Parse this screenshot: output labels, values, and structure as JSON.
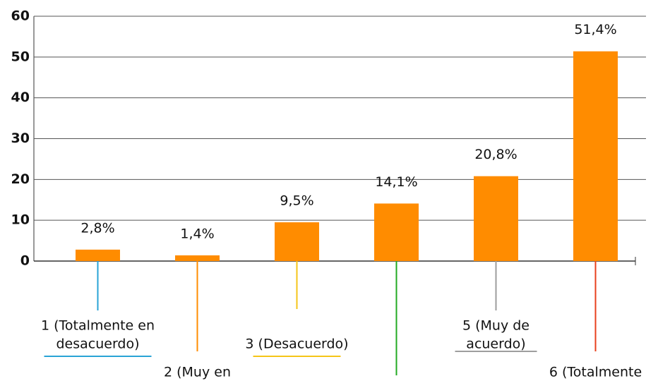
{
  "chart_data": {
    "type": "bar",
    "categories": [
      [
        "1 (Totalmente en",
        "desacuerdo)"
      ],
      [
        "2 (Muy en"
      ],
      [
        "3 (Desacuerdo)"
      ],
      null,
      [
        "5 (Muy de",
        "acuerdo)"
      ],
      [
        "6 (Totalmente"
      ]
    ],
    "values": [
      2.8,
      1.4,
      9.5,
      14.1,
      20.8,
      51.4
    ],
    "value_labels": [
      "2,8%",
      "1,4%",
      "9,5%",
      "14,1%",
      "20,8%",
      "51,4%"
    ],
    "color": "#ff8c00",
    "category_colors": [
      "#29a3d6",
      "#ff8c00",
      "#f5c518",
      "#22aa22",
      "#9e9e9e",
      "#e8401c"
    ],
    "ylim": [
      0,
      60
    ],
    "yticks": [
      0,
      10,
      20,
      30,
      40,
      50,
      60
    ],
    "grid": true
  }
}
